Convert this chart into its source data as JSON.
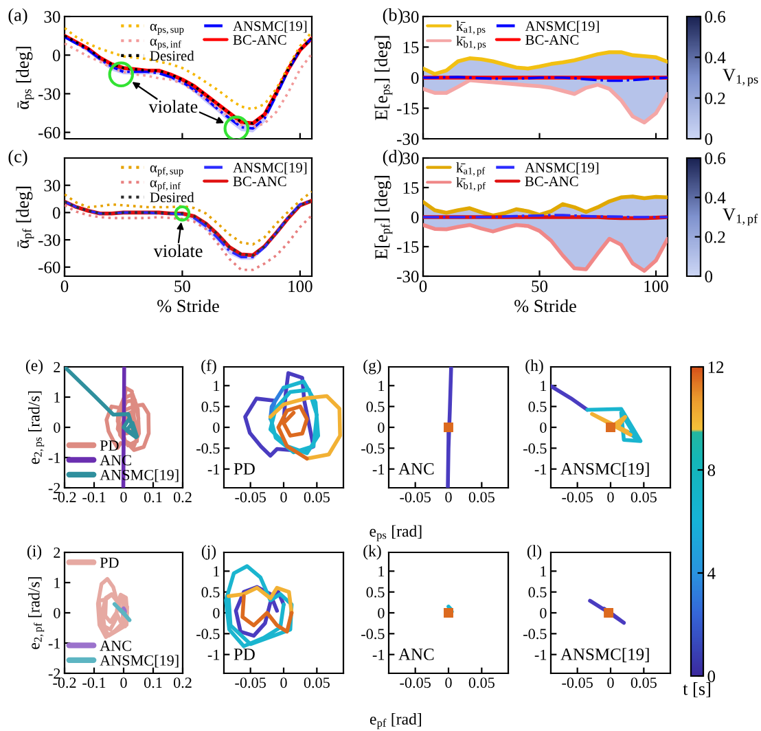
{
  "chart_data": [
    {
      "type": "line",
      "title": "(a)",
      "ylabel": "ᾱ$_{ps}$ [deg]",
      "x": [
        0,
        5,
        10,
        15,
        20,
        25,
        30,
        35,
        40,
        45,
        50,
        55,
        60,
        65,
        70,
        75,
        80,
        85,
        90,
        95,
        100,
        105
      ],
      "xlim": [
        0,
        105
      ],
      "xticks": [
        0,
        50,
        100
      ],
      "ylim": [
        -65,
        30
      ],
      "yticks": [
        -60,
        -30,
        0,
        30
      ],
      "tick_labels": "y",
      "legend": "top right",
      "series": [
        {
          "name": "α$_{ps,sup}$",
          "color": "#f5b700",
          "line_style": "dotted",
          "values": [
            21,
            14,
            9,
            5,
            2,
            -1,
            -2,
            -3,
            -5,
            -7,
            -10,
            -15,
            -21,
            -27,
            -34,
            -40,
            -42,
            -38,
            -26,
            -9,
            7,
            18
          ]
        },
        {
          "name": "α$_{ps,inf}$",
          "color": "#f29a9a",
          "line_style": "dotted",
          "values": [
            9,
            4,
            -1,
            -5,
            -10,
            -13,
            -15,
            -16,
            -18,
            -19,
            -22,
            -28,
            -34,
            -41,
            -48,
            -54,
            -56,
            -53,
            -44,
            -29,
            -11,
            1
          ]
        },
        {
          "name": "Desired",
          "color": "#000000",
          "line_style": "dotted",
          "values": [
            15,
            10,
            5,
            -2,
            -7,
            -10,
            -11,
            -12,
            -12,
            -15,
            -19,
            -24,
            -31,
            -38,
            -45,
            -52,
            -53,
            -46,
            -29,
            -11,
            4,
            13
          ]
        },
        {
          "name": "ANSMC[19]",
          "color": "#0000ff",
          "line_style": "dashdot",
          "values": [
            14,
            9,
            4,
            -3,
            -9,
            -13,
            -13,
            -13,
            -14,
            -17,
            -21,
            -27,
            -34,
            -42,
            -49,
            -56,
            -57,
            -49,
            -31,
            -12,
            4,
            13
          ],
          "lower": [
            13,
            8,
            2,
            -5,
            -12,
            -15,
            -15,
            -15,
            -15,
            -19,
            -23,
            -29,
            -37,
            -44,
            -52,
            -59,
            -60,
            -52,
            -33,
            -14,
            2,
            12
          ],
          "upper": [
            15,
            10,
            5,
            -2,
            -7,
            -11,
            -12,
            -12,
            -12,
            -15,
            -20,
            -25,
            -32,
            -39,
            -47,
            -53,
            -54,
            -46,
            -29,
            -10,
            5,
            14
          ]
        },
        {
          "name": "BC-ANC",
          "color": "#ff0000",
          "line_style": "solid",
          "values": [
            15,
            10,
            5,
            -2,
            -7,
            -10,
            -11,
            -12,
            -12,
            -15,
            -19,
            -24,
            -31,
            -38,
            -45,
            -52,
            -53,
            -46,
            -29,
            -11,
            4,
            13
          ]
        },
        {
          "type": "scatter",
          "color": "#33e233",
          "marker": "circle",
          "x": [
            24,
            73
          ],
          "values": [
            -15,
            -57
          ]
        }
      ],
      "annotations": [
        "violate"
      ]
    },
    {
      "type": "line",
      "title": "(b)",
      "ylabel": "E[e$_{ps}$] [deg]",
      "x": [
        0,
        5,
        10,
        15,
        20,
        25,
        30,
        35,
        40,
        45,
        50,
        55,
        60,
        65,
        70,
        75,
        80,
        85,
        90,
        95,
        100,
        105
      ],
      "xlim": [
        0,
        105
      ],
      "xticks": [
        0,
        50,
        100
      ],
      "ylim": [
        -30,
        30
      ],
      "yticks": [
        -30,
        -15,
        0,
        15,
        30
      ],
      "tick_labels": "y",
      "legend": "top left",
      "clim": [
        0,
        0.6
      ],
      "cticks": [
        0,
        0.2,
        0.4,
        0.6
      ],
      "clabel": "V$_{1,ps}$",
      "series": [
        {
          "name": "k̄$_{a1,ps}$",
          "color": "#f2c012",
          "line_style": "solid",
          "values": [
            4.5,
            1.8,
            3.5,
            8,
            9.5,
            9,
            8,
            6.5,
            5,
            4.5,
            5.5,
            6.7,
            7.5,
            8.5,
            10,
            11.5,
            12.5,
            12.5,
            11,
            10.5,
            10,
            7.8
          ]
        },
        {
          "name": "k̄$_{b1,ps}$",
          "color": "#f4a6a6",
          "line_style": "solid",
          "values": [
            -5.5,
            -7.5,
            -7.5,
            -4.5,
            -1.3,
            -1.8,
            -2.3,
            -2.8,
            -3.3,
            -3.8,
            -4.2,
            -5,
            -6.5,
            -8,
            -5,
            -3.5,
            -5.5,
            -11,
            -19,
            -22,
            -17.5,
            -8
          ]
        },
        {
          "name": "ANSMC[19]",
          "color": "#0000ff",
          "line_style": "dashdot",
          "values": [
            0,
            0,
            0.2,
            0.3,
            0,
            -0.3,
            -0.5,
            -0.5,
            -0.5,
            -0.3,
            0,
            0,
            0,
            -0.3,
            -0.8,
            -1.2,
            -1.5,
            -1.5,
            -1.2,
            -0.8,
            -0.3,
            0
          ]
        },
        {
          "name": "BC-ANC",
          "color": "#ff0000",
          "line_style": "solid",
          "values": [
            0,
            0,
            0,
            0,
            0,
            0,
            0,
            0,
            0,
            0,
            0,
            0,
            0,
            0,
            0,
            0,
            0,
            0,
            0,
            0,
            0,
            0
          ],
          "lower": [
            -5.5,
            -7.5,
            -7.5,
            -4.5,
            -1.3,
            -1.8,
            -2.3,
            -2.8,
            -3.3,
            -3.8,
            -4.2,
            -5,
            -6.5,
            -8,
            -5,
            -3.5,
            -5.5,
            -11,
            -19,
            -22,
            -17.5,
            -8
          ],
          "upper": [
            4.5,
            1.8,
            3.5,
            8,
            9.5,
            9,
            8,
            6.5,
            5,
            4.5,
            5.5,
            6.7,
            7.5,
            8.5,
            10,
            11.5,
            12.5,
            12.5,
            11,
            10.5,
            10,
            7.8
          ]
        }
      ]
    },
    {
      "type": "line",
      "title": "(c)",
      "ylabel": "ᾱ$_{pf}$ [deg]",
      "xlabel": "% Stride",
      "x": [
        0,
        5,
        10,
        15,
        20,
        25,
        30,
        35,
        40,
        45,
        50,
        55,
        60,
        65,
        70,
        75,
        80,
        85,
        90,
        95,
        100,
        105
      ],
      "xlim": [
        0,
        105
      ],
      "xticks": [
        0,
        50,
        100
      ],
      "ylim": [
        -70,
        60
      ],
      "yticks": [
        -60,
        -30,
        0,
        30
      ],
      "legend": "top right",
      "series": [
        {
          "name": "α$_{pf,sup}$",
          "color": "#e6a200",
          "line_style": "dotted",
          "values": [
            20,
            11,
            6,
            7,
            9,
            8,
            7,
            6,
            6,
            6,
            7,
            5,
            -1,
            -12,
            -24,
            -33,
            -35,
            -27,
            -12,
            1,
            13,
            23
          ]
        },
        {
          "name": "α$_{pf,inf}$",
          "color": "#e88080",
          "line_style": "dotted",
          "values": [
            8,
            1,
            -3,
            -5,
            -6,
            -6,
            -6,
            -6,
            -5,
            -6,
            -7,
            -10,
            -18,
            -34,
            -51,
            -63,
            -63,
            -56,
            -47,
            -33,
            -16,
            -3
          ]
        },
        {
          "name": "Desired",
          "color": "#303030",
          "line_style": "dotted",
          "values": [
            12,
            6,
            2,
            -1,
            -1,
            0,
            0,
            0,
            0,
            -1,
            -1,
            -4,
            -12,
            -24,
            -38,
            -46,
            -47,
            -37,
            -22,
            -6,
            8,
            13
          ]
        },
        {
          "name": "ANSMC[19]",
          "color": "#2a2aff",
          "line_style": "dashdot",
          "values": [
            12,
            6,
            2,
            -1,
            -1,
            0,
            0,
            0,
            -1,
            -1,
            -2,
            -6,
            -15,
            -28,
            -42,
            -49,
            -49,
            -38,
            -22,
            -5,
            9,
            13
          ],
          "lower": [
            11,
            5,
            1,
            -2,
            -2,
            -1,
            -1,
            -1,
            -2,
            -2,
            -3,
            -9,
            -19,
            -32,
            -46,
            -52,
            -52,
            -40,
            -24,
            -7,
            8,
            12
          ],
          "upper": [
            13,
            7,
            3,
            0,
            0,
            1,
            1,
            1,
            0,
            0,
            0,
            -4,
            -12,
            -25,
            -39,
            -46,
            -46,
            -35,
            -20,
            -3,
            10,
            14
          ]
        },
        {
          "name": "BC-ANC",
          "color": "#e01010",
          "line_style": "solid",
          "values": [
            12,
            6,
            2,
            -1,
            -1,
            0,
            0,
            0,
            0,
            -1,
            -1,
            -4,
            -12,
            -24,
            -38,
            -46,
            -47,
            -37,
            -22,
            -6,
            8,
            13
          ]
        },
        {
          "type": "scatter",
          "color": "#33e233",
          "marker": "circle",
          "x": [
            50
          ],
          "values": [
            -1
          ]
        }
      ],
      "annotations": [
        "violate"
      ]
    },
    {
      "type": "line",
      "title": "(d)",
      "ylabel": "E[e$_{pf}$] [deg]",
      "xlabel": "% Stride",
      "x": [
        0,
        5,
        10,
        15,
        20,
        25,
        30,
        35,
        40,
        45,
        50,
        55,
        60,
        65,
        70,
        75,
        80,
        85,
        90,
        95,
        100,
        105
      ],
      "xlim": [
        0,
        105
      ],
      "xticks": [
        0,
        50,
        100
      ],
      "ylim": [
        -30,
        30
      ],
      "yticks": [
        -30,
        -15,
        0,
        15,
        30
      ],
      "legend": "top left",
      "clim": [
        0,
        0.6
      ],
      "cticks": [
        0,
        0.2,
        0.4,
        0.6
      ],
      "clabel": "V$_{1,pf}$",
      "series": [
        {
          "name": "k̄$_{a1,pf}$",
          "color": "#e0a800",
          "line_style": "solid",
          "values": [
            7.7,
            3.5,
            2.2,
            3.5,
            4.5,
            2.5,
            0.8,
            2,
            4,
            3,
            1.2,
            3,
            6.6,
            5,
            2.6,
            5,
            8,
            10,
            10.5,
            9.6,
            10.3,
            10
          ]
        },
        {
          "name": "k̄$_{b1,pf}$",
          "color": "#f08888",
          "line_style": "solid",
          "values": [
            -4,
            -6,
            -6.2,
            -5,
            -4,
            -5.8,
            -7.3,
            -5.5,
            -4,
            -4.5,
            -7,
            -12,
            -19.5,
            -26,
            -26.5,
            -18.5,
            -11,
            -14,
            -23.5,
            -27.3,
            -22,
            -11
          ]
        },
        {
          "name": "ANSMC[19]",
          "color": "#2a2aff",
          "line_style": "dashdot",
          "values": [
            0,
            0,
            0,
            0,
            0,
            0,
            0,
            0.3,
            0.5,
            0.7,
            0.8,
            1,
            1,
            0.8,
            0.5,
            0.3,
            0.3,
            0.2,
            0,
            0,
            0,
            0
          ]
        },
        {
          "name": "BC-ANC",
          "color": "#e01010",
          "line_style": "solid",
          "values": [
            0,
            0,
            0,
            0,
            0,
            0,
            0,
            0,
            0,
            0,
            0,
            0,
            0,
            0,
            0,
            0,
            -0.3,
            -0.5,
            -0.5,
            -0.5,
            -0.3,
            0
          ],
          "lower": [
            -4,
            -6,
            -6.2,
            -5,
            -4,
            -5.8,
            -7.3,
            -5.5,
            -4,
            -4.5,
            -7,
            -12,
            -19.5,
            -26,
            -26.5,
            -18.5,
            -11,
            -14,
            -23.5,
            -27.3,
            -22,
            -11
          ],
          "upper": [
            7.7,
            3.5,
            2.2,
            3.5,
            4.5,
            2.5,
            0.8,
            2,
            4,
            3,
            1.2,
            3,
            6.6,
            5,
            2.6,
            5,
            8,
            10,
            10.5,
            9.6,
            10.3,
            10
          ]
        }
      ]
    },
    {
      "type": "line",
      "title": "(e)",
      "ylabel": "e$_{2,ps}$ [rad/s]",
      "xlim": [
        -0.2,
        0.2
      ],
      "xticks": [
        -0.2,
        -0.1,
        0,
        0.1,
        0.2
      ],
      "ylim": [
        -2,
        2
      ],
      "yticks": [
        -2,
        -1,
        0,
        1,
        2
      ],
      "legend": "bottom left",
      "series": [
        {
          "name": "PD",
          "color": "#dd8b82",
          "x": [
            0.0,
            0.003,
            0.007,
            0.028,
            0.031,
            0.045,
            0.028,
            -0.01,
            -0.02,
            -0.034,
            -0.051,
            -0.058,
            -0.041,
            -0.013,
            -0.02,
            -0.018,
            0.0,
            0.03,
            0.048,
            0.052,
            0.035,
            0.005,
            -0.02,
            -0.012,
            0.01,
            0.038,
            0.05,
            0.045,
            0.015,
            -0.012,
            -0.02,
            0.0,
            0.035,
            0.065,
            0.084,
            0.085,
            0.068,
            0.035,
            0.005,
            -0.008,
            0.005,
            0.025,
            0.035,
            0.028,
            0.01,
            0.0,
            0.015
          ],
          "values": [
            0.1,
            0.8,
            1.3,
            1.19,
            0.64,
            -0.46,
            -0.57,
            -0.52,
            -0.68,
            -0.46,
            -0.13,
            0.25,
            0.69,
            0.64,
            0.2,
            0.5,
            0.95,
            1.1,
            0.6,
            -0.2,
            -0.62,
            -0.45,
            -0.05,
            0.45,
            0.85,
            0.9,
            0.3,
            -0.45,
            -0.6,
            -0.25,
            0.25,
            0.55,
            0.7,
            0.75,
            0.45,
            -0.2,
            -0.65,
            -0.75,
            -0.45,
            0.0,
            0.4,
            0.5,
            0.2,
            -0.15,
            -0.2,
            0.1,
            0.35
          ]
        },
        {
          "name": "ANC",
          "color": "#6a2fb0",
          "x": [
            0.002,
            0.001,
            0.0,
            -0.001,
            0.0,
            0.0
          ],
          "values": [
            2.0,
            0.4,
            -0.5,
            -2.0,
            -0.3,
            0.0
          ]
        },
        {
          "name": "ANSMC[19]",
          "color": "#2f8f9d",
          "x": [
            -0.2,
            -0.1,
            -0.035,
            0.016,
            0.04,
            0.0,
            0.02,
            0.042,
            0.01,
            0.03,
            0.045,
            0.0
          ],
          "values": [
            2.0,
            1.05,
            0.42,
            0.44,
            -0.3,
            0.0,
            0.3,
            -0.33,
            -0.1,
            0.15,
            -0.3,
            0.0
          ]
        }
      ]
    },
    {
      "type": "line",
      "title": "(f)",
      "xlim": [
        -0.09,
        0.09
      ],
      "xticks": [
        -0.05,
        0,
        0.05
      ],
      "ylim": [
        -1.45,
        1.45
      ],
      "yticks": [
        -1,
        -0.5,
        0,
        0.5,
        1
      ],
      "annotations": [
        "PD"
      ],
      "series": [
        {
          "color": "#4a3cc0",
          "x": [
            0.0,
            0.003,
            0.007,
            0.028,
            0.031,
            0.045,
            0.028,
            -0.01,
            -0.02,
            -0.034,
            -0.051,
            -0.058,
            -0.041,
            -0.013
          ],
          "values": [
            0.1,
            0.8,
            1.3,
            1.19,
            0.64,
            -0.46,
            -0.57,
            -0.52,
            -0.68,
            -0.46,
            -0.13,
            0.25,
            0.69,
            0.64
          ]
        },
        {
          "color": "#2f7fe0",
          "x": [
            -0.013,
            -0.02,
            -0.018,
            0.0
          ],
          "values": [
            0.64,
            0.2,
            0.5,
            0.95
          ]
        },
        {
          "color": "#1ab5cf",
          "x": [
            0.0,
            0.03,
            0.048,
            0.052,
            0.035,
            0.005,
            -0.02,
            -0.012,
            0.01,
            0.038,
            0.05,
            0.045,
            0.015,
            -0.012,
            -0.02
          ],
          "values": [
            0.95,
            1.1,
            0.6,
            -0.2,
            -0.62,
            -0.45,
            -0.05,
            0.45,
            0.85,
            0.9,
            0.3,
            -0.45,
            -0.6,
            -0.25,
            0.25
          ]
        },
        {
          "color": "#f2b134",
          "x": [
            -0.02,
            0.0,
            0.035,
            0.065,
            0.084,
            0.085,
            0.068,
            0.035
          ],
          "values": [
            0.25,
            0.55,
            0.7,
            0.75,
            0.45,
            -0.2,
            -0.65,
            -0.75
          ]
        },
        {
          "color": "#dc6a1f",
          "x": [
            0.035,
            0.005,
            -0.008,
            0.005,
            0.025,
            0.035,
            0.028,
            0.01,
            0.0,
            0.015
          ],
          "values": [
            -0.75,
            -0.45,
            0.0,
            0.4,
            0.5,
            0.2,
            -0.15,
            -0.2,
            0.1,
            0.35
          ]
        }
      ]
    },
    {
      "type": "line",
      "title": "(g)",
      "xlabel": "e$_{ps}$ [rad]",
      "xlim": [
        -0.09,
        0.09
      ],
      "xticks": [
        -0.05,
        0,
        0.05
      ],
      "ylim": [
        -1.45,
        1.45
      ],
      "yticks": [
        -1,
        -0.5,
        0,
        0.5,
        1
      ],
      "annotations": [
        "ANC"
      ],
      "series": [
        {
          "color": "#4a3cc0",
          "x": [
            0.004,
            0.002,
            0.0,
            -0.001,
            0.0,
            0.0
          ],
          "values": [
            1.45,
            0.4,
            -0.5,
            -1.45,
            -0.3,
            0.0
          ]
        },
        {
          "type": "scatter",
          "color": "#dc6a1f",
          "marker": "square",
          "x": [
            0.0
          ],
          "values": [
            0.0
          ]
        }
      ]
    },
    {
      "type": "line",
      "title": "(h)",
      "xlim": [
        -0.09,
        0.09
      ],
      "xticks": [
        -0.05,
        0,
        0.05
      ],
      "ylim": [
        -1.45,
        1.45
      ],
      "yticks": [
        -1,
        -0.5,
        0,
        0.5,
        1
      ],
      "clim": [
        0,
        12
      ],
      "cticks": [
        0,
        4,
        8,
        12
      ],
      "clabel": "t [s]",
      "annotations": [
        "ANSMC[19]"
      ],
      "series": [
        {
          "color": "#4a3cc0",
          "x": [
            -0.09,
            -0.06,
            -0.035
          ],
          "values": [
            0.99,
            0.7,
            0.42
          ]
        },
        {
          "color": "#1ab5cf",
          "x": [
            -0.035,
            0.016,
            0.045,
            0.02,
            0.016,
            0.04,
            0.025
          ],
          "values": [
            0.42,
            0.44,
            -0.33,
            -0.3,
            0.35,
            -0.28,
            -0.1
          ]
        },
        {
          "color": "#f2b134",
          "x": [
            0.025,
            -0.028,
            0.03,
            0.01,
            0.022,
            0.0
          ],
          "values": [
            -0.1,
            0.32,
            -0.18,
            0.0,
            0.25,
            0.0
          ]
        },
        {
          "type": "scatter",
          "color": "#dc6a1f",
          "marker": "square",
          "x": [
            0.0
          ],
          "values": [
            0.0
          ]
        }
      ]
    },
    {
      "type": "line",
      "title": "(i)",
      "ylabel": "e$_{2,pf}$ [rad/s]",
      "xlim": [
        -0.2,
        0.2
      ],
      "xticks": [
        -0.2,
        -0.1,
        0,
        0.1,
        0.2
      ],
      "ylim": [
        -2,
        2
      ],
      "yticks": [
        -2,
        -1,
        0,
        1,
        2
      ],
      "legend": [
        "top left",
        "bottom left",
        "bottom left"
      ],
      "series": [
        {
          "name": "PD",
          "color": "#e6a9a2",
          "x": [
            -0.01,
            -0.02,
            -0.04,
            -0.06,
            -0.072,
            -0.065,
            -0.045,
            -0.028,
            -0.02,
            -0.008,
            0.0,
            -0.005,
            -0.03,
            -0.06,
            -0.082,
            -0.087,
            -0.075,
            -0.055,
            -0.035,
            -0.02,
            -0.005,
            0.012,
            0.01,
            -0.015,
            -0.05,
            -0.08,
            -0.083,
            -0.06,
            -0.04,
            -0.02,
            -0.01,
            0.008,
            0.012,
            0.005,
            -0.01,
            -0.025,
            -0.045,
            -0.062,
            -0.06
          ],
          "values": [
            0.05,
            0.45,
            0.62,
            0.5,
            0.05,
            -0.45,
            -0.55,
            -0.25,
            0.25,
            0.5,
            0.2,
            -0.35,
            -0.6,
            -0.8,
            -0.4,
            0.3,
            0.95,
            1.12,
            0.85,
            0.3,
            0.45,
            0.2,
            -0.4,
            -0.55,
            -0.75,
            -0.3,
            0.4,
            0.45,
            0.6,
            0.35,
            0.6,
            0.5,
            0.0,
            -0.45,
            -0.3,
            0.0,
            -0.3,
            -0.1,
            0.4
          ]
        },
        {
          "name": "ANC",
          "color": "#9b72cc",
          "x": [
            0.0,
            0.004,
            0.002,
            -0.003,
            0.003,
            0.005,
            -0.002,
            0.004,
            -0.002,
            0.002,
            0.0
          ],
          "values": [
            0.15,
            0.08,
            -0.03,
            0.02,
            0.1,
            0.03,
            -0.02,
            0.06,
            0.0,
            0.02,
            0.0
          ]
        },
        {
          "name": "ANSMC[19]",
          "color": "#5cb5c2",
          "x": [
            -0.031,
            -0.015,
            0.0,
            0.02,
            0.005,
            -0.01,
            0.0,
            0.003,
            -0.003,
            0.002,
            -0.002
          ],
          "values": [
            0.29,
            0.13,
            -0.02,
            -0.24,
            -0.06,
            0.1,
            0.0,
            -0.02,
            0.02,
            -0.01,
            0.01
          ]
        }
      ]
    },
    {
      "type": "line",
      "title": "(j)",
      "xlim": [
        -0.09,
        0.09
      ],
      "xticks": [
        -0.05,
        0,
        0.05
      ],
      "ylim": [
        -1.45,
        1.45
      ],
      "yticks": [
        -1,
        -0.5,
        0,
        0.5,
        1
      ],
      "annotations": [
        "PD"
      ],
      "series": [
        {
          "color": "#4a3cc0",
          "x": [
            -0.01,
            -0.02,
            -0.04,
            -0.06,
            -0.072,
            -0.065,
            -0.045,
            -0.028,
            -0.02,
            -0.008,
            0.0
          ],
          "values": [
            0.05,
            0.45,
            0.62,
            0.5,
            0.05,
            -0.45,
            -0.55,
            -0.25,
            0.25,
            0.5,
            0.2
          ]
        },
        {
          "color": "#1ab5cf",
          "x": [
            0.0,
            -0.005,
            -0.03,
            -0.06,
            -0.082,
            -0.087,
            -0.075,
            -0.055,
            -0.035,
            -0.02,
            -0.005,
            0.012,
            0.01,
            -0.015,
            -0.05,
            -0.08,
            -0.083
          ],
          "values": [
            0.2,
            -0.35,
            -0.6,
            -0.8,
            -0.4,
            0.3,
            0.95,
            1.12,
            0.85,
            0.3,
            0.45,
            0.2,
            -0.4,
            -0.55,
            -0.75,
            -0.3,
            0.4
          ]
        },
        {
          "color": "#f2b134",
          "x": [
            -0.083,
            -0.06,
            -0.04,
            -0.02,
            -0.01,
            0.008,
            0.012
          ],
          "values": [
            0.4,
            0.45,
            0.6,
            0.35,
            0.6,
            0.5,
            0.0
          ]
        },
        {
          "color": "#dc6a1f",
          "x": [
            0.012,
            0.005,
            -0.01,
            -0.025,
            -0.045,
            -0.062,
            -0.06
          ],
          "values": [
            0.0,
            -0.45,
            -0.3,
            0.0,
            -0.3,
            -0.1,
            0.4
          ]
        }
      ]
    },
    {
      "type": "line",
      "title": "(k)",
      "xlabel": "e$_{pf}$ [rad]",
      "xlim": [
        -0.09,
        0.09
      ],
      "xticks": [
        -0.05,
        0,
        0.05
      ],
      "ylim": [
        -1.45,
        1.45
      ],
      "yticks": [
        -1,
        -0.5,
        0,
        0.5,
        1
      ],
      "annotations": [
        "ANC"
      ],
      "series": [
        {
          "color": "#1ab5cf",
          "x": [
            0.0,
            0.004,
            0.002,
            -0.003,
            0.003,
            0.005
          ],
          "values": [
            0.15,
            0.08,
            -0.03,
            0.02,
            0.1,
            0.03
          ]
        },
        {
          "type": "scatter",
          "color": "#dc6a1f",
          "marker": "square",
          "x": [
            0.0
          ],
          "values": [
            0.0
          ]
        }
      ]
    },
    {
      "type": "line",
      "title": "(l)",
      "xlim": [
        -0.09,
        0.09
      ],
      "xticks": [
        -0.05,
        0,
        0.05
      ],
      "ylim": [
        -1.45,
        1.45
      ],
      "yticks": [
        -1,
        -0.5,
        0,
        0.5,
        1
      ],
      "annotations": [
        "ANSMC[19]"
      ],
      "series": [
        {
          "color": "#4a3cc0",
          "x": [
            -0.031,
            -0.015,
            0.0,
            0.02,
            0.005,
            -0.01,
            0.0
          ],
          "values": [
            0.29,
            0.13,
            -0.02,
            -0.24,
            -0.06,
            0.1,
            0.0
          ]
        },
        {
          "type": "scatter",
          "color": "#dc6a1f",
          "marker": "square",
          "x": [
            -0.003
          ],
          "values": [
            0.0
          ]
        }
      ]
    }
  ]
}
